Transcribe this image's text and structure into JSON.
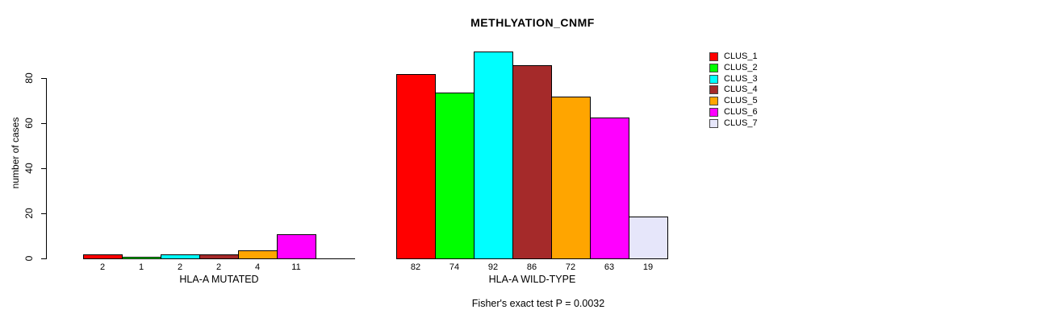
{
  "chart_data": {
    "type": "bar",
    "title": "METHLYATION_CNMF",
    "ylabel": "number of cases",
    "xlabel": "",
    "yticks": [
      0,
      20,
      40,
      60,
      80
    ],
    "ylim": [
      0,
      92
    ],
    "grid": false,
    "legend_position": "right",
    "series": [
      "CLUS_1",
      "CLUS_2",
      "CLUS_3",
      "CLUS_4",
      "CLUS_5",
      "CLUS_6",
      "CLUS_7"
    ],
    "colors": [
      "#FF0000",
      "#00FF00",
      "#00FFFF",
      "#A52A2A",
      "#FFA500",
      "#FF00FF",
      "#E6E6FA"
    ],
    "groups": [
      {
        "label": "HLA-A MUTATED",
        "values": [
          2,
          1,
          2,
          2,
          4,
          11,
          0
        ],
        "value_labels": [
          "2",
          "1",
          "2",
          "2",
          "4",
          "11",
          ""
        ]
      },
      {
        "label": "HLA-A WILD-TYPE",
        "values": [
          82,
          74,
          92,
          86,
          72,
          63,
          19
        ],
        "value_labels": [
          "82",
          "74",
          "92",
          "86",
          "72",
          "63",
          "19"
        ]
      }
    ],
    "annotation": "Fisher's exact test P = 0.0032"
  }
}
